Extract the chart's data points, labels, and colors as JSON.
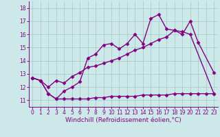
{
  "line1_x": [
    0,
    1,
    2,
    3,
    4,
    5,
    6,
    7,
    8,
    9,
    10,
    11,
    12,
    13,
    14,
    15,
    16,
    17,
    18,
    19,
    20,
    21,
    23
  ],
  "line1_y": [
    12.7,
    12.5,
    11.5,
    11.1,
    11.7,
    12.0,
    12.4,
    14.2,
    14.5,
    15.2,
    15.3,
    14.9,
    15.3,
    16.0,
    15.3,
    17.2,
    17.5,
    16.4,
    16.3,
    16.0,
    17.0,
    15.4,
    13.1
  ],
  "line2_x": [
    0,
    1,
    2,
    3,
    4,
    5,
    6,
    7,
    8,
    9,
    10,
    11,
    12,
    13,
    14,
    15,
    16,
    17,
    18,
    19,
    20,
    23
  ],
  "line2_y": [
    12.7,
    12.5,
    12.0,
    12.5,
    12.3,
    12.8,
    13.1,
    13.5,
    13.6,
    13.8,
    14.0,
    14.2,
    14.5,
    14.8,
    15.0,
    15.3,
    15.6,
    15.8,
    16.3,
    16.2,
    16.0,
    11.5
  ],
  "line3_x": [
    0,
    1,
    2,
    3,
    4,
    5,
    6,
    7,
    8,
    9,
    10,
    11,
    12,
    13,
    14,
    15,
    16,
    17,
    18,
    19,
    20,
    21,
    22,
    23
  ],
  "line3_y": [
    12.7,
    12.5,
    11.5,
    11.1,
    11.1,
    11.1,
    11.1,
    11.1,
    11.2,
    11.2,
    11.3,
    11.3,
    11.3,
    11.3,
    11.4,
    11.4,
    11.4,
    11.4,
    11.5,
    11.5,
    11.5,
    11.5,
    11.5,
    11.5
  ],
  "color": "#800080",
  "bg_color": "#cce8e8",
  "grid_color": "#aacccc",
  "xlabel": "Windchill (Refroidissement éolien,°C)",
  "xlim": [
    -0.5,
    23.5
  ],
  "ylim": [
    10.5,
    18.5
  ],
  "yticks": [
    11,
    12,
    13,
    14,
    15,
    16,
    17,
    18
  ],
  "xticks": [
    0,
    1,
    2,
    3,
    4,
    5,
    6,
    7,
    8,
    9,
    10,
    11,
    12,
    13,
    14,
    15,
    16,
    17,
    18,
    19,
    20,
    21,
    22,
    23
  ],
  "marker": "D",
  "markersize": 2.5,
  "linewidth": 1.0,
  "xlabel_fontsize": 6.5,
  "tick_fontsize": 5.5
}
